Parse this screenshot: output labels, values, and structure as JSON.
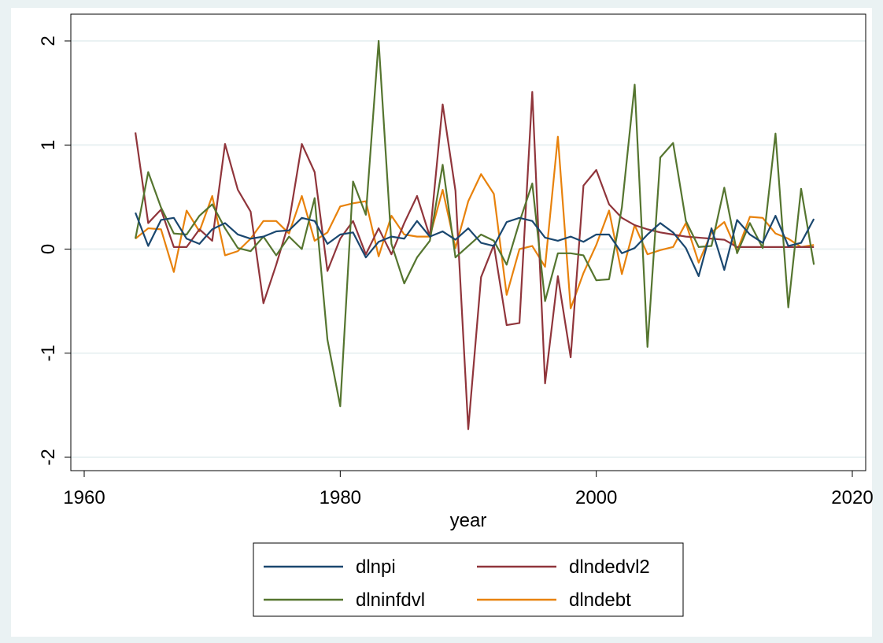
{
  "chart_data": {
    "type": "line",
    "title": "",
    "xlabel": "year",
    "ylabel": "",
    "xlim": [
      1960,
      2020
    ],
    "ylim": [
      -2,
      2
    ],
    "xticks": [
      1960,
      1980,
      2000,
      2020
    ],
    "yticks": [
      -2,
      -1,
      0,
      1,
      2
    ],
    "ytick_labels": [
      "-2",
      "-1",
      "0",
      "1",
      "2"
    ],
    "grid": true,
    "legend_position": "bottom",
    "x": [
      1964,
      1965,
      1966,
      1967,
      1968,
      1969,
      1970,
      1971,
      1972,
      1973,
      1974,
      1975,
      1976,
      1977,
      1978,
      1979,
      1980,
      1981,
      1982,
      1983,
      1984,
      1985,
      1986,
      1987,
      1988,
      1989,
      1990,
      1991,
      1992,
      1993,
      1994,
      1995,
      1996,
      1997,
      1998,
      1999,
      2000,
      2001,
      2002,
      2003,
      2004,
      2005,
      2006,
      2007,
      2008,
      2009,
      2010,
      2011,
      2012,
      2013,
      2014,
      2015,
      2016,
      2017
    ],
    "series": [
      {
        "name": "dlnpi",
        "color": "#1a476f",
        "values": [
          0.35,
          0.03,
          0.28,
          0.3,
          0.1,
          0.05,
          0.19,
          0.25,
          0.14,
          0.1,
          0.12,
          0.17,
          0.18,
          0.3,
          0.27,
          0.05,
          0.14,
          0.16,
          -0.08,
          0.07,
          0.12,
          0.1,
          0.27,
          0.12,
          0.17,
          0.09,
          0.2,
          0.06,
          0.03,
          0.26,
          0.3,
          0.27,
          0.11,
          0.08,
          0.12,
          0.07,
          0.14,
          0.14,
          -0.04,
          0.01,
          0.14,
          0.25,
          0.16,
          0.01,
          -0.26,
          0.2,
          -0.2,
          0.28,
          0.14,
          0.06,
          0.32,
          0.03,
          0.06,
          0.29
        ]
      },
      {
        "name": "dlninfdvl",
        "color": "#55752f",
        "values": [
          0.1,
          0.74,
          0.4,
          0.15,
          0.14,
          0.32,
          0.43,
          0.2,
          0.01,
          -0.02,
          0.12,
          -0.06,
          0.12,
          0.0,
          0.49,
          -0.87,
          -1.51,
          0.65,
          0.33,
          2.0,
          0.05,
          -0.33,
          -0.08,
          0.08,
          0.81,
          -0.08,
          0.03,
          0.14,
          0.08,
          -0.15,
          0.26,
          0.63,
          -0.5,
          -0.04,
          -0.04,
          -0.06,
          -0.3,
          -0.29,
          0.4,
          1.58,
          -0.94,
          0.88,
          1.02,
          0.27,
          0.02,
          0.03,
          0.59,
          -0.04,
          0.25,
          0.01,
          1.11,
          -0.56,
          0.58,
          -0.15
        ]
      },
      {
        "name": "dlndedvl2",
        "color": "#90353b",
        "values": [
          1.12,
          0.25,
          0.38,
          0.02,
          0.02,
          0.19,
          0.08,
          1.01,
          0.57,
          0.36,
          -0.52,
          -0.15,
          0.26,
          1.01,
          0.74,
          -0.21,
          0.1,
          0.27,
          -0.05,
          0.2,
          -0.05,
          0.25,
          0.51,
          0.12,
          1.39,
          0.56,
          -1.73,
          -0.27,
          0.04,
          -0.73,
          -0.71,
          1.51,
          -1.29,
          -0.26,
          -1.04,
          0.61,
          0.76,
          0.43,
          0.3,
          0.23,
          0.19,
          0.16,
          0.14,
          0.12,
          0.11,
          0.1,
          0.09,
          0.02,
          0.02,
          0.02,
          0.02,
          0.02,
          0.02,
          0.02
        ]
      },
      {
        "name": "dlndebt",
        "color": "#e8820c",
        "values": [
          0.1,
          0.2,
          0.19,
          -0.22,
          0.37,
          0.17,
          0.51,
          -0.06,
          -0.02,
          0.1,
          0.27,
          0.27,
          0.15,
          0.51,
          0.08,
          0.16,
          0.41,
          0.44,
          0.46,
          -0.07,
          0.32,
          0.14,
          0.12,
          0.12,
          0.57,
          0.01,
          0.46,
          0.72,
          0.53,
          -0.44,
          0.0,
          0.03,
          -0.17,
          1.08,
          -0.57,
          -0.23,
          0.04,
          0.37,
          -0.24,
          0.23,
          -0.05,
          -0.01,
          0.02,
          0.25,
          -0.13,
          0.16,
          0.26,
          -0.02,
          0.31,
          0.3,
          0.15,
          0.1,
          0.02,
          0.04
        ]
      }
    ]
  },
  "legend_order": [
    "dlnpi",
    "dlndedvl2",
    "dlninfdvl",
    "dlndebt"
  ]
}
